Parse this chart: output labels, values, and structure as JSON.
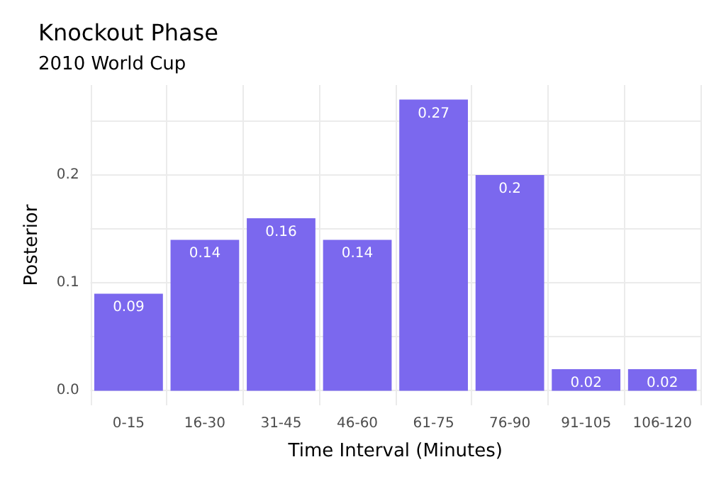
{
  "chart_data": {
    "type": "bar",
    "title": "Knockout Phase",
    "subtitle": "2010 World Cup",
    "xlabel": "Time Interval (Minutes)",
    "ylabel": "Posterior",
    "categories": [
      "0-15",
      "16-30",
      "31-45",
      "46-60",
      "61-75",
      "76-90",
      "91-105",
      "106-120"
    ],
    "values": [
      0.09,
      0.14,
      0.16,
      0.14,
      0.27,
      0.2,
      0.02,
      0.02
    ],
    "color": "#7b68ee",
    "data_labels": true,
    "ylim": [
      -0.0135,
      0.2835
    ],
    "yticks": [
      {
        "value": 0,
        "label": "0.0"
      },
      {
        "value": 0.05,
        "label": null
      },
      {
        "value": 0.1,
        "label": "0.1"
      },
      {
        "value": 0.15,
        "label": null
      },
      {
        "value": 0.2,
        "label": "0.2"
      },
      {
        "value": 0.25,
        "label": null
      }
    ],
    "grid": true
  }
}
